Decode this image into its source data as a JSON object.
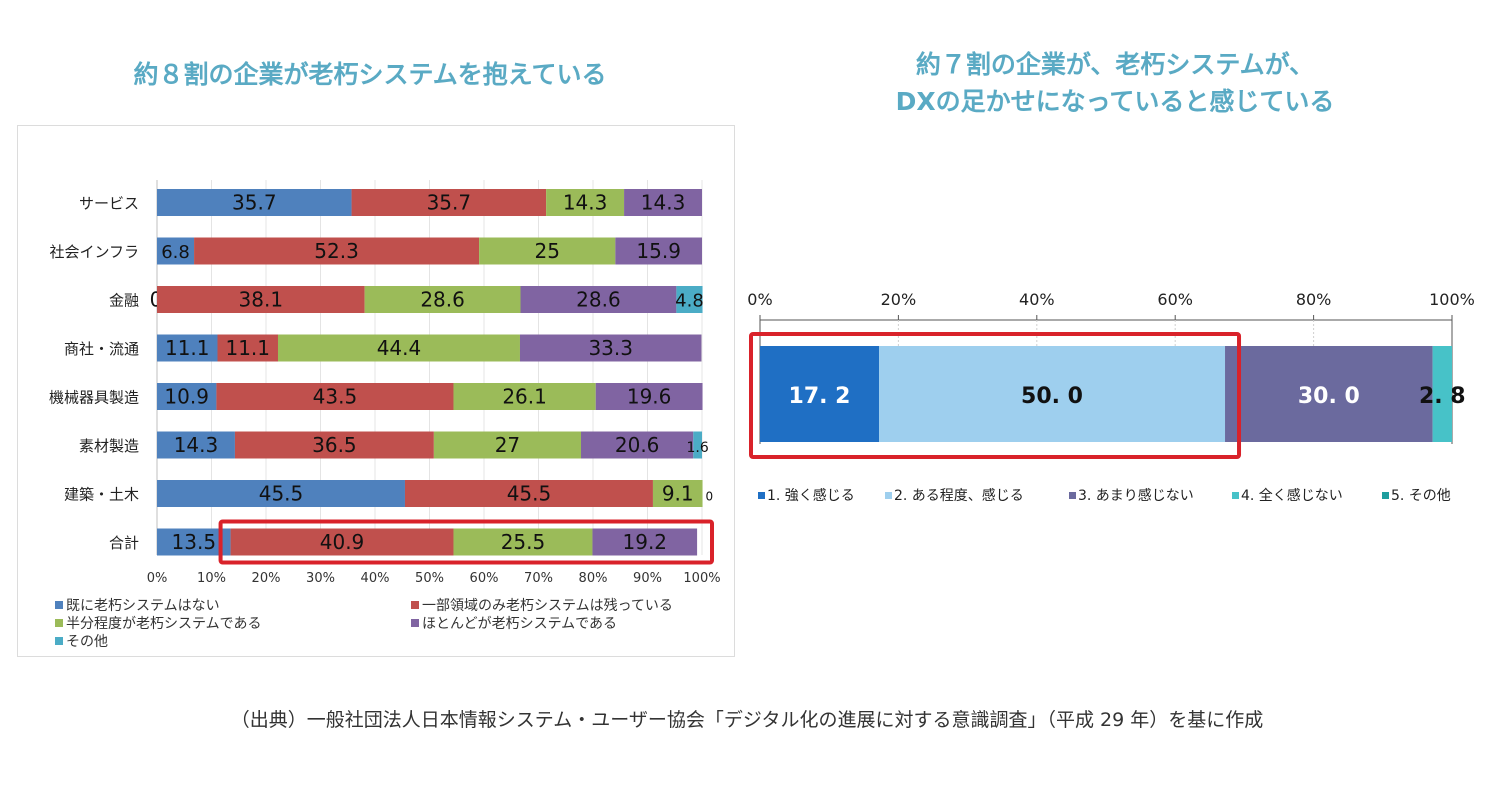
{
  "left_title": "約８割の企業が老朽システムを抱えている",
  "right_title_line1": "約７割の企業が、老朽システムが、",
  "right_title_line2": "DXの足かせになっていると感じている",
  "source_note": "（出典）一般社団法人日本情報システム・ユーザー協会「デジタル化の進展に対する意識調査」（平成 29 年）を基に作成",
  "colors": {
    "blue": "#4f81bd",
    "red": "#c0504d",
    "green": "#9bbb59",
    "purple": "#8064a2",
    "teal": "#4bacc6",
    "r_dark": "#1f6fc4",
    "r_light": "#9ecfee",
    "r_purple": "#6b6a9e",
    "r_teal": "#47c2c8",
    "r_teal2": "#1e9e9e",
    "highlight": "#d9222a"
  },
  "chart_data": [
    {
      "type": "bar",
      "orientation": "horizontal-stacked",
      "categories": [
        "サービス",
        "社会インフラ",
        "金融",
        "商社・流通",
        "機械器具製造",
        "素材製造",
        "建築・土木",
        "合計"
      ],
      "series": [
        {
          "name": "既に老朽システムはない",
          "color": "#4f81bd",
          "values": [
            35.7,
            6.8,
            0,
            11.1,
            10.9,
            14.3,
            45.5,
            13.5
          ],
          "labels": [
            "35.7",
            "6.8",
            "0",
            "11.1",
            "10.9",
            "14.3",
            "45.5",
            "13.5"
          ]
        },
        {
          "name": "一部領域のみ老朽システムは残っている",
          "color": "#c0504d",
          "values": [
            35.7,
            52.3,
            38.1,
            11.1,
            43.5,
            36.5,
            45.5,
            40.9
          ],
          "labels": [
            "35.7",
            "52.3",
            "38.1",
            "11.1",
            "43.5",
            "36.5",
            "45.5",
            "40.9"
          ]
        },
        {
          "name": "半分程度が老朽システムである",
          "color": "#9bbb59",
          "values": [
            14.3,
            25,
            28.6,
            44.4,
            26.1,
            27,
            9.1,
            25.5
          ],
          "labels": [
            "14.3",
            "25",
            "28.6",
            "44.4",
            "26.1",
            "27",
            "9.1",
            "25.5"
          ]
        },
        {
          "name": "ほとんどが老朽システムである",
          "color": "#8064a2",
          "values": [
            14.3,
            15.9,
            28.6,
            33.3,
            19.6,
            20.6,
            0,
            19.2
          ],
          "labels": [
            "14.3",
            "15.9",
            "28.6",
            "33.3",
            "19.6",
            "20.6",
            "0",
            "19.2"
          ]
        },
        {
          "name": "その他",
          "color": "#4bacc6",
          "values": [
            0,
            0,
            4.8,
            0,
            0,
            1.6,
            0,
            0
          ],
          "labels": [
            "",
            "",
            "4.8",
            "",
            "",
            "1.6",
            "",
            ""
          ]
        }
      ],
      "xticks": [
        "0%",
        "10%",
        "20%",
        "30%",
        "40%",
        "50%",
        "60%",
        "70%",
        "80%",
        "90%",
        "100%"
      ],
      "xlim": [
        0,
        100
      ],
      "highlight": "合計"
    },
    {
      "type": "bar",
      "orientation": "horizontal-stacked",
      "categories": [
        ""
      ],
      "series": [
        {
          "name": "1. 強く感じる",
          "color": "#1f6fc4",
          "values": [
            17.2
          ],
          "label": "17. 2"
        },
        {
          "name": "2. ある程度、感じる",
          "color": "#9ecfee",
          "values": [
            50.0
          ],
          "label": "50. 0"
        },
        {
          "name": "3. あまり感じない",
          "color": "#6b6a9e",
          "values": [
            30.0
          ],
          "label": "30. 0"
        },
        {
          "name": "4. 全く感じない",
          "color": "#47c2c8",
          "values": [
            2.8
          ],
          "label": "2. 8"
        },
        {
          "name": "5. その他",
          "color": "#1e9e9e",
          "values": [
            0
          ],
          "label": ""
        }
      ],
      "xticks": [
        "0%",
        "20%",
        "40%",
        "60%",
        "80%",
        "100%"
      ],
      "xlim": [
        0,
        100
      ],
      "highlight_range": [
        0,
        67.2
      ]
    }
  ]
}
